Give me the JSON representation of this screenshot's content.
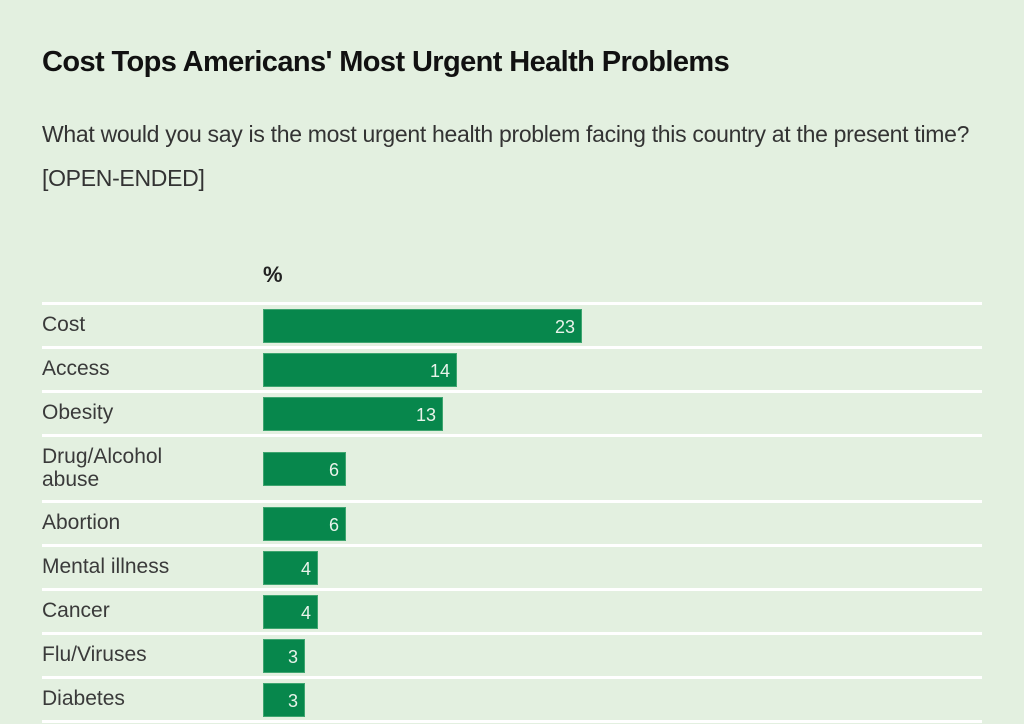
{
  "header": {
    "title": "Cost Tops Americans' Most Urgent Health Problems",
    "subtitle": "What would you say is the most urgent health problem facing this country at the present time? [OPEN-ENDED]"
  },
  "colors": {
    "background": "#e3f0e0",
    "bar": "#07874c",
    "divider": "#ffffff"
  },
  "chart_data": {
    "type": "bar",
    "orientation": "horizontal",
    "title": "Cost Tops Americans' Most Urgent Health Problems",
    "subtitle": "What would you say is the most urgent health problem facing this country at the present time? [OPEN-ENDED]",
    "unit_label": "%",
    "categories": [
      "Cost",
      "Access",
      "Obesity",
      "Drug/Alcohol abuse",
      "Abortion",
      "Mental illness",
      "Cancer",
      "Flu/Viruses",
      "Diabetes"
    ],
    "label_lines": [
      [
        "Cost"
      ],
      [
        "Access"
      ],
      [
        "Obesity"
      ],
      [
        "Drug/Alcohol",
        "abuse"
      ],
      [
        "Abortion"
      ],
      [
        "Mental illness"
      ],
      [
        "Cancer"
      ],
      [
        "Flu/Viruses"
      ],
      [
        "Diabetes"
      ]
    ],
    "values": [
      23,
      14,
      13,
      6,
      6,
      4,
      4,
      3,
      3
    ],
    "xlim": [
      0,
      52
    ],
    "grid": false,
    "legend": "none"
  }
}
